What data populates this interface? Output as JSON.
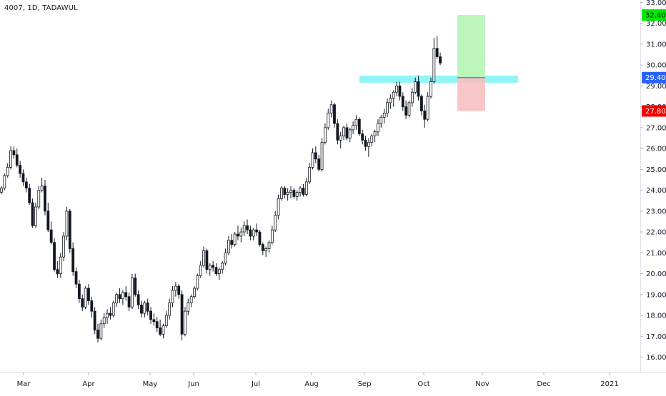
{
  "header": {
    "symbol_title": "4007, 1D, TADAWUL"
  },
  "chart_data": {
    "type": "candlestick",
    "y_axis": {
      "min": 15.5,
      "max": 33.0,
      "ticks": [
        "16.00",
        "17.00",
        "18.00",
        "19.00",
        "20.00",
        "21.00",
        "22.00",
        "23.00",
        "24.00",
        "25.00",
        "26.00",
        "27.00",
        "28.00",
        "29.00",
        "30.00",
        "31.00",
        "32.00",
        "33.00"
      ]
    },
    "x_axis": {
      "labels": [
        "Mar",
        "Apr",
        "May",
        "Jun",
        "Jul",
        "Aug",
        "Sep",
        "Oct",
        "Nov",
        "Dec",
        "2021"
      ]
    },
    "price_labels": [
      {
        "text": "32.40",
        "value": 32.4,
        "color": "#00e600",
        "text_color": "#131722"
      },
      {
        "text": "29.40",
        "value": 29.4,
        "color": "#2962ff",
        "text_color": "#ffffff"
      },
      {
        "text": "27.80",
        "value": 27.8,
        "color": "#f20000",
        "text_color": "#ffffff"
      }
    ],
    "position_tool": {
      "entry": 29.4,
      "target": 32.4,
      "stop": 27.8,
      "profit_color": "#b6f5b6",
      "loss_color": "#f8c0c0",
      "entry_line_color": "#2962ff"
    },
    "zone": {
      "y_low": 29.15,
      "y_high": 29.5,
      "color": "#7ff3f3"
    },
    "candles": [
      [
        23.9,
        24.2,
        23.8,
        24.1
      ],
      [
        24.1,
        24.8,
        24.0,
        24.7
      ],
      [
        24.7,
        25.3,
        24.6,
        25.1
      ],
      [
        25.1,
        26.1,
        25.0,
        25.9
      ],
      [
        25.9,
        26.1,
        25.5,
        25.7
      ],
      [
        25.7,
        26.0,
        25.1,
        25.2
      ],
      [
        25.2,
        25.4,
        24.6,
        24.8
      ],
      [
        24.8,
        25.0,
        24.2,
        24.4
      ],
      [
        24.4,
        24.6,
        23.9,
        24.1
      ],
      [
        24.1,
        24.3,
        23.3,
        23.4
      ],
      [
        23.4,
        23.6,
        22.2,
        22.3
      ],
      [
        22.3,
        23.4,
        22.2,
        23.2
      ],
      [
        23.2,
        24.2,
        23.1,
        24.0
      ],
      [
        24.0,
        24.6,
        23.9,
        24.2
      ],
      [
        24.2,
        24.5,
        22.8,
        23.0
      ],
      [
        23.0,
        23.4,
        22.0,
        22.1
      ],
      [
        22.1,
        22.5,
        21.4,
        21.5
      ],
      [
        21.5,
        21.7,
        20.1,
        20.2
      ],
      [
        20.2,
        20.6,
        19.8,
        20.0
      ],
      [
        20.0,
        21.0,
        19.8,
        20.8
      ],
      [
        20.8,
        22.0,
        20.6,
        21.8
      ],
      [
        21.8,
        23.2,
        21.6,
        23.0
      ],
      [
        23.0,
        23.1,
        21.0,
        21.2
      ],
      [
        21.2,
        21.5,
        19.9,
        20.1
      ],
      [
        20.1,
        20.3,
        19.3,
        19.5
      ],
      [
        19.5,
        19.7,
        18.6,
        18.8
      ],
      [
        18.8,
        19.0,
        18.2,
        18.4
      ],
      [
        18.4,
        19.4,
        18.3,
        19.3
      ],
      [
        19.3,
        19.5,
        18.5,
        18.7
      ],
      [
        18.7,
        18.9,
        17.9,
        18.2
      ],
      [
        18.2,
        18.4,
        17.1,
        17.3
      ],
      [
        17.3,
        17.6,
        16.7,
        16.9
      ],
      [
        16.9,
        17.8,
        16.8,
        17.6
      ],
      [
        17.6,
        18.1,
        17.4,
        17.9
      ],
      [
        17.9,
        18.3,
        17.6,
        18.1
      ],
      [
        18.1,
        18.4,
        17.8,
        18.0
      ],
      [
        18.0,
        18.7,
        17.9,
        18.6
      ],
      [
        18.6,
        19.1,
        18.4,
        19.0
      ],
      [
        19.0,
        19.3,
        18.6,
        18.8
      ],
      [
        18.8,
        19.2,
        18.5,
        19.1
      ],
      [
        19.1,
        19.4,
        18.7,
        18.9
      ],
      [
        18.9,
        19.1,
        18.2,
        18.4
      ],
      [
        18.4,
        20.0,
        18.3,
        19.8
      ],
      [
        19.8,
        20.0,
        18.9,
        19.0
      ],
      [
        19.0,
        19.2,
        18.3,
        18.5
      ],
      [
        18.5,
        18.7,
        17.9,
        18.1
      ],
      [
        18.1,
        18.7,
        17.9,
        18.6
      ],
      [
        18.6,
        18.8,
        18.0,
        18.2
      ],
      [
        18.2,
        18.4,
        17.6,
        17.8
      ],
      [
        17.8,
        18.1,
        17.5,
        17.7
      ],
      [
        17.7,
        17.9,
        17.2,
        17.4
      ],
      [
        17.4,
        17.8,
        17.0,
        17.1
      ],
      [
        17.1,
        17.6,
        16.9,
        17.5
      ],
      [
        17.5,
        18.2,
        17.4,
        18.0
      ],
      [
        18.0,
        18.8,
        17.8,
        18.6
      ],
      [
        18.6,
        19.4,
        18.4,
        19.2
      ],
      [
        19.2,
        19.6,
        18.9,
        19.4
      ],
      [
        19.4,
        19.5,
        18.8,
        19.0
      ],
      [
        19.0,
        19.2,
        16.8,
        17.1
      ],
      [
        17.1,
        18.4,
        17.0,
        18.2
      ],
      [
        18.2,
        18.8,
        18.0,
        18.6
      ],
      [
        18.6,
        19.0,
        18.4,
        18.9
      ],
      [
        18.9,
        19.4,
        18.8,
        19.3
      ],
      [
        19.3,
        20.0,
        19.2,
        19.9
      ],
      [
        19.9,
        20.6,
        19.8,
        20.4
      ],
      [
        20.4,
        21.3,
        20.3,
        21.1
      ],
      [
        21.1,
        21.2,
        20.0,
        20.2
      ],
      [
        20.2,
        20.5,
        19.9,
        20.4
      ],
      [
        20.4,
        20.6,
        20.1,
        20.3
      ],
      [
        20.3,
        20.5,
        19.9,
        20.0
      ],
      [
        20.0,
        20.3,
        19.7,
        20.2
      ],
      [
        20.2,
        20.6,
        20.0,
        20.5
      ],
      [
        20.5,
        21.2,
        20.4,
        21.0
      ],
      [
        21.0,
        21.8,
        20.9,
        21.6
      ],
      [
        21.6,
        21.9,
        21.2,
        21.4
      ],
      [
        21.4,
        22.0,
        21.3,
        21.9
      ],
      [
        21.9,
        22.3,
        21.6,
        21.8
      ],
      [
        21.8,
        22.2,
        21.5,
        22.0
      ],
      [
        22.0,
        22.5,
        21.8,
        22.3
      ],
      [
        22.3,
        22.6,
        21.9,
        22.1
      ],
      [
        22.1,
        22.3,
        21.6,
        21.8
      ],
      [
        21.8,
        22.2,
        21.6,
        22.1
      ],
      [
        22.1,
        22.4,
        21.8,
        22.0
      ],
      [
        22.0,
        22.1,
        21.3,
        21.4
      ],
      [
        21.4,
        21.5,
        20.9,
        21.1
      ],
      [
        21.1,
        21.3,
        20.8,
        21.2
      ],
      [
        21.2,
        21.6,
        21.0,
        21.5
      ],
      [
        21.5,
        22.3,
        21.4,
        22.1
      ],
      [
        22.1,
        23.0,
        22.0,
        22.8
      ],
      [
        22.8,
        23.8,
        22.6,
        23.6
      ],
      [
        23.6,
        24.2,
        23.5,
        24.1
      ],
      [
        24.1,
        24.2,
        23.6,
        23.8
      ],
      [
        23.8,
        24.1,
        23.5,
        23.9
      ],
      [
        23.9,
        24.2,
        23.6,
        24.0
      ],
      [
        24.0,
        24.1,
        23.6,
        23.7
      ],
      [
        23.7,
        24.0,
        23.5,
        23.9
      ],
      [
        23.9,
        24.2,
        23.7,
        24.1
      ],
      [
        24.1,
        24.3,
        23.7,
        23.8
      ],
      [
        23.8,
        24.6,
        23.7,
        24.4
      ],
      [
        24.4,
        25.3,
        24.3,
        25.1
      ],
      [
        25.1,
        26.0,
        25.0,
        25.8
      ],
      [
        25.8,
        26.1,
        25.3,
        25.5
      ],
      [
        25.5,
        25.7,
        24.9,
        25.0
      ],
      [
        25.0,
        26.5,
        24.9,
        26.3
      ],
      [
        26.3,
        27.2,
        26.2,
        27.0
      ],
      [
        27.0,
        27.9,
        26.9,
        27.7
      ],
      [
        27.7,
        28.3,
        27.5,
        28.1
      ],
      [
        28.1,
        28.2,
        27.0,
        27.2
      ],
      [
        27.2,
        27.4,
        26.2,
        26.4
      ],
      [
        26.4,
        26.8,
        26.0,
        26.6
      ],
      [
        26.6,
        27.1,
        26.4,
        27.0
      ],
      [
        27.0,
        27.2,
        26.4,
        26.5
      ],
      [
        26.5,
        27.0,
        26.3,
        26.9
      ],
      [
        26.9,
        27.3,
        26.7,
        27.1
      ],
      [
        27.1,
        27.6,
        26.9,
        27.4
      ],
      [
        27.4,
        27.5,
        26.6,
        26.7
      ],
      [
        26.7,
        26.9,
        26.2,
        26.4
      ],
      [
        26.4,
        26.6,
        25.9,
        26.1
      ],
      [
        26.1,
        26.5,
        25.6,
        26.3
      ],
      [
        26.3,
        26.7,
        26.1,
        26.6
      ],
      [
        26.6,
        26.9,
        26.3,
        26.8
      ],
      [
        26.8,
        27.4,
        26.6,
        27.2
      ],
      [
        27.2,
        27.6,
        27.0,
        27.5
      ],
      [
        27.5,
        27.9,
        27.2,
        27.7
      ],
      [
        27.7,
        28.4,
        27.5,
        28.2
      ],
      [
        28.2,
        28.6,
        27.9,
        28.4
      ],
      [
        28.4,
        28.8,
        28.0,
        28.7
      ],
      [
        28.7,
        29.2,
        28.5,
        29.0
      ],
      [
        29.0,
        29.2,
        28.3,
        28.5
      ],
      [
        28.5,
        28.7,
        27.8,
        28.0
      ],
      [
        28.0,
        28.3,
        27.4,
        27.6
      ],
      [
        27.6,
        28.3,
        27.5,
        28.2
      ],
      [
        28.2,
        28.9,
        28.0,
        28.7
      ],
      [
        28.7,
        29.4,
        28.6,
        29.2
      ],
      [
        29.2,
        29.5,
        28.3,
        28.5
      ],
      [
        28.5,
        28.6,
        27.6,
        27.8
      ],
      [
        27.8,
        28.1,
        27.0,
        27.4
      ],
      [
        27.4,
        28.7,
        27.3,
        28.5
      ],
      [
        28.5,
        29.4,
        28.4,
        29.2
      ],
      [
        29.2,
        31.3,
        29.1,
        30.8
      ],
      [
        30.8,
        31.4,
        30.3,
        30.4
      ],
      [
        30.4,
        30.6,
        30.0,
        30.1
      ]
    ]
  }
}
